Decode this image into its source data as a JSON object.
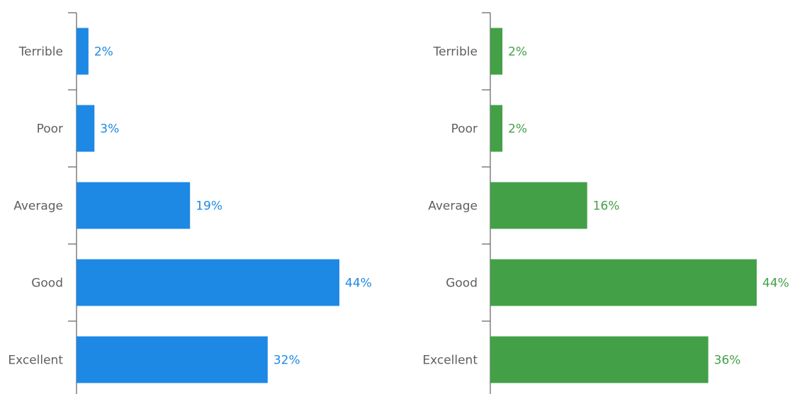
{
  "chart_data": [
    {
      "type": "bar",
      "orientation": "horizontal",
      "categories": [
        "Terrible",
        "Poor",
        "Average",
        "Good",
        "Excellent"
      ],
      "values": [
        2,
        3,
        19,
        44,
        32
      ],
      "value_labels": [
        "2%",
        "3%",
        "19%",
        "44%",
        "32%"
      ],
      "xlim": [
        0,
        48
      ],
      "color": "#1e88e5",
      "grid": false
    },
    {
      "type": "bar",
      "orientation": "horizontal",
      "categories": [
        "Terrible",
        "Poor",
        "Average",
        "Good",
        "Excellent"
      ],
      "values": [
        2,
        2,
        16,
        44,
        36
      ],
      "value_labels": [
        "2%",
        "2%",
        "16%",
        "44%",
        "36%"
      ],
      "xlim": [
        0,
        48
      ],
      "color": "#43a047",
      "grid": false
    }
  ]
}
